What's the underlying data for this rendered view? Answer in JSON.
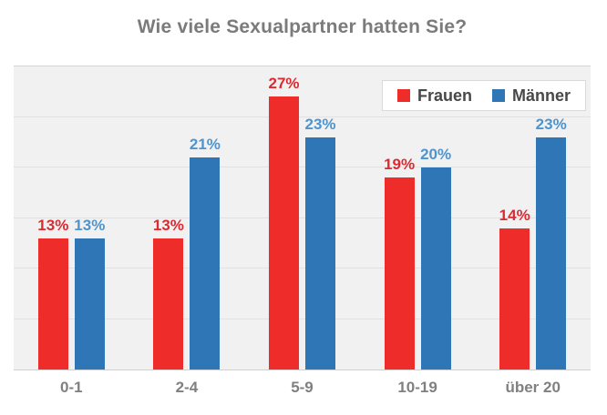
{
  "title": "Wie viele Sexualpartner hatten Sie?",
  "colors": {
    "title_text": "#7b7b7b",
    "axis_text": "#808080",
    "legend_text": "#484848",
    "frauen_bar": "#ee2d2b",
    "maenner_bar": "#2e76b6",
    "frauen_label": "#dd2a31",
    "maenner_label": "#4e94ce",
    "plot_background": "#f1f1f2",
    "gridline": "#e1e1e2"
  },
  "legend": {
    "items": [
      {
        "label": "Frauen",
        "color": "#ee2d2b"
      },
      {
        "label": "Männer",
        "color": "#2e76b6"
      }
    ]
  },
  "chart_data": {
    "type": "bar",
    "title": "Wie viele Sexualpartner hatten Sie?",
    "categories": [
      "0-1",
      "2-4",
      "5-9",
      "10-19",
      "über 20"
    ],
    "series": [
      {
        "name": "Frauen",
        "color": "#ee2d2b",
        "label_color": "#dd2a31",
        "values": [
          13,
          13,
          27,
          19,
          14
        ],
        "labels": [
          "13%",
          "13%",
          "27%",
          "19%",
          "14%"
        ]
      },
      {
        "name": "Männer",
        "color": "#2e76b6",
        "label_color": "#4e94ce",
        "values": [
          13,
          21,
          23,
          20,
          23
        ],
        "labels": [
          "13%",
          "21%",
          "23%",
          "20%",
          "23%"
        ]
      }
    ],
    "xlabel": "",
    "ylabel": "",
    "ylim": [
      0,
      30
    ],
    "grid_step": 5,
    "grid": "horizontal",
    "y_tick_labels_visible": false,
    "legend_position": "top-right",
    "value_suffix": "%"
  }
}
